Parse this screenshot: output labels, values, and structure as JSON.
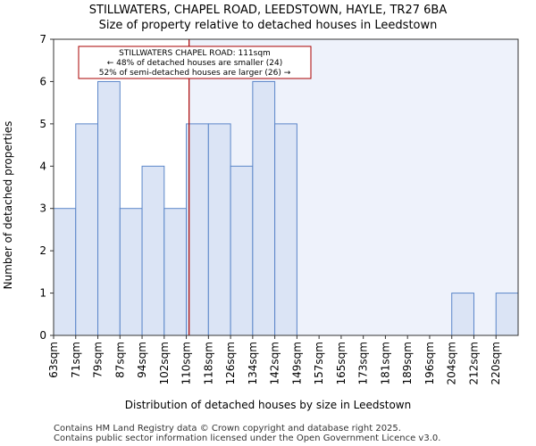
{
  "chart_data": {
    "type": "bar",
    "title": "STILLWATERS, CHAPEL ROAD, LEEDSTOWN, HAYLE, TR27 6BA",
    "subtitle": "Size of property relative to detached houses in Leedstown",
    "xlabel": "Distribution of detached houses by size in Leedstown",
    "ylabel": "Number of detached properties",
    "ylim": [
      0,
      7
    ],
    "yticks": [
      "0",
      "1",
      "2",
      "3",
      "4",
      "5",
      "6",
      "7"
    ],
    "categories": [
      "63sqm",
      "71sqm",
      "79sqm",
      "87sqm",
      "94sqm",
      "102sqm",
      "110sqm",
      "118sqm",
      "126sqm",
      "134sqm",
      "142sqm",
      "149sqm",
      "157sqm",
      "165sqm",
      "173sqm",
      "181sqm",
      "189sqm",
      "196sqm",
      "204sqm",
      "212sqm",
      "220sqm"
    ],
    "bin_edges": [
      63,
      71,
      79,
      87,
      94,
      102,
      110,
      118,
      126,
      134,
      142,
      149,
      157,
      165,
      173,
      181,
      189,
      196,
      204,
      212,
      220
    ],
    "values": [
      3,
      5,
      6,
      3,
      4,
      3,
      5,
      5,
      4,
      6,
      5,
      0,
      0,
      0,
      0,
      0,
      0,
      0,
      1,
      0,
      1
    ],
    "marker_value": 111,
    "annotation": [
      "STILLWATERS CHAPEL ROAD: 111sqm",
      "← 48% of detached houses are smaller (24)",
      "52% of semi-detached houses are larger (26) →"
    ],
    "colors": {
      "bar_fill": "#dbe4f5",
      "bar_edge": "#5b86c9",
      "marker": "#aa0000",
      "highlight_bg": "#eef2fb",
      "annotation_border": "#aa0000"
    },
    "grid": false,
    "legend": "none"
  },
  "footer": {
    "line1": "Contains HM Land Registry data © Crown copyright and database right 2025.",
    "line2": "Contains public sector information licensed under the Open Government Licence v3.0."
  }
}
